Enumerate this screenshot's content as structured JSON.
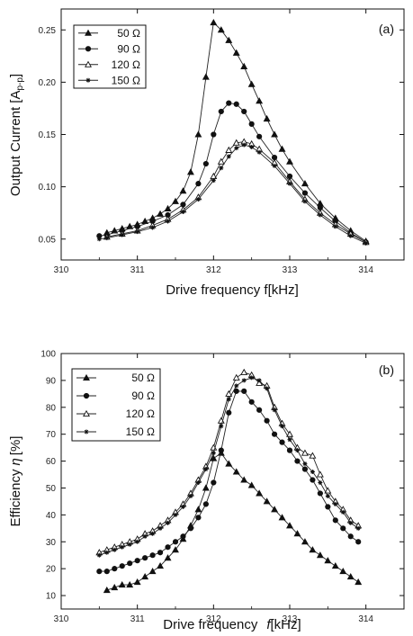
{
  "chart_data": [
    {
      "type": "line",
      "panel_label": "(a)",
      "xlabel": "Drive frequency f[kHz]",
      "ylabel": "Output Current [A",
      "ylabel_sub": "p-p",
      "ylabel_end": "]",
      "xlim": [
        310,
        314.5
      ],
      "ylim": [
        0.03,
        0.27
      ],
      "xticks": [
        "310",
        "311",
        "312",
        "313",
        "314"
      ],
      "yticks": [
        "0.05",
        "0.10",
        "0.15",
        "0.20",
        "0.25"
      ],
      "ytick_values": [
        0.05,
        0.1,
        0.15,
        0.2,
        0.25
      ],
      "xtick_values": [
        310,
        311,
        312,
        313,
        314
      ],
      "legend_position": "top-left",
      "grid": false,
      "series": [
        {
          "name": "50 Ω",
          "marker": "triangle-filled",
          "x": [
            310.6,
            310.7,
            310.8,
            310.9,
            311.0,
            311.1,
            311.2,
            311.3,
            311.4,
            311.5,
            311.6,
            311.7,
            311.8,
            311.9,
            312.0,
            312.1,
            312.2,
            312.3,
            312.4,
            312.5,
            312.6,
            312.7,
            312.8,
            312.9,
            313.0,
            313.2,
            313.4,
            313.6,
            313.8,
            314.0
          ],
          "y": [
            0.056,
            0.058,
            0.06,
            0.062,
            0.064,
            0.067,
            0.07,
            0.074,
            0.079,
            0.086,
            0.096,
            0.114,
            0.15,
            0.205,
            0.257,
            0.25,
            0.24,
            0.228,
            0.215,
            0.198,
            0.182,
            0.165,
            0.15,
            0.136,
            0.124,
            0.103,
            0.084,
            0.07,
            0.058,
            0.048
          ]
        },
        {
          "name": "90 Ω",
          "marker": "circle-filled",
          "x": [
            310.5,
            310.6,
            310.8,
            311.0,
            311.2,
            311.4,
            311.6,
            311.8,
            311.9,
            312.0,
            312.1,
            312.2,
            312.3,
            312.4,
            312.5,
            312.6,
            312.8,
            313.0,
            313.2,
            313.4,
            313.6,
            313.8,
            314.0
          ],
          "y": [
            0.053,
            0.054,
            0.058,
            0.062,
            0.067,
            0.073,
            0.083,
            0.103,
            0.122,
            0.15,
            0.172,
            0.18,
            0.179,
            0.172,
            0.16,
            0.148,
            0.128,
            0.11,
            0.094,
            0.08,
            0.067,
            0.056,
            0.047
          ]
        },
        {
          "name": "120 Ω",
          "marker": "triangle-open",
          "x": [
            310.6,
            310.8,
            311.0,
            311.2,
            311.4,
            311.6,
            311.8,
            312.0,
            312.1,
            312.2,
            312.3,
            312.4,
            312.5,
            312.6,
            312.8,
            313.0,
            313.2,
            313.4,
            313.6,
            313.8,
            314.0
          ],
          "y": [
            0.052,
            0.055,
            0.058,
            0.063,
            0.069,
            0.078,
            0.09,
            0.11,
            0.124,
            0.135,
            0.142,
            0.143,
            0.141,
            0.136,
            0.123,
            0.105,
            0.088,
            0.075,
            0.064,
            0.055,
            0.047
          ]
        },
        {
          "name": "150 Ω",
          "marker": "star-small",
          "x": [
            310.5,
            310.6,
            310.8,
            311.0,
            311.2,
            311.4,
            311.6,
            311.8,
            312.0,
            312.1,
            312.2,
            312.3,
            312.4,
            312.5,
            312.6,
            312.8,
            313.0,
            313.2,
            313.4,
            313.6,
            313.8,
            314.0
          ],
          "y": [
            0.05,
            0.051,
            0.054,
            0.057,
            0.061,
            0.067,
            0.076,
            0.088,
            0.106,
            0.118,
            0.129,
            0.137,
            0.14,
            0.138,
            0.133,
            0.12,
            0.103,
            0.086,
            0.073,
            0.062,
            0.053,
            0.046
          ]
        }
      ]
    },
    {
      "type": "line",
      "panel_label": "(b)",
      "xlabel": "Drive frequency",
      "xlabel_f": "f",
      "xlabel_unit": "[kHz]",
      "ylabel": "Efficiency",
      "ylabel_sym": "η",
      "ylabel_unit": "[%]",
      "xlim": [
        310,
        314.5
      ],
      "ylim": [
        5,
        100
      ],
      "xticks": [
        "310",
        "311",
        "312",
        "313",
        "314"
      ],
      "yticks": [
        "10",
        "20",
        "30",
        "40",
        "50",
        "60",
        "70",
        "80",
        "90",
        "100"
      ],
      "ytick_values": [
        10,
        20,
        30,
        40,
        50,
        60,
        70,
        80,
        90,
        100
      ],
      "xtick_values": [
        310,
        311,
        312,
        313,
        314
      ],
      "legend_position": "top-left",
      "grid": false,
      "series": [
        {
          "name": "50 Ω",
          "marker": "triangle-filled",
          "x": [
            310.6,
            310.7,
            310.8,
            310.9,
            311.0,
            311.1,
            311.2,
            311.3,
            311.4,
            311.5,
            311.6,
            311.7,
            311.8,
            311.9,
            312.0,
            312.1,
            312.2,
            312.3,
            312.4,
            312.5,
            312.6,
            312.7,
            312.8,
            312.9,
            313.0,
            313.1,
            313.2,
            313.3,
            313.4,
            313.5,
            313.6,
            313.7,
            313.8,
            313.9
          ],
          "y": [
            12,
            13,
            14,
            14,
            15,
            17,
            19,
            21,
            24,
            27,
            31,
            36,
            42,
            50,
            61,
            63,
            59,
            56,
            53,
            51,
            48,
            45,
            42,
            39,
            36,
            33,
            30,
            27,
            25,
            23,
            21,
            19,
            17,
            15
          ]
        },
        {
          "name": "90 Ω",
          "marker": "circle-filled",
          "x": [
            310.5,
            310.6,
            310.7,
            310.8,
            310.9,
            311.0,
            311.1,
            311.2,
            311.3,
            311.4,
            311.5,
            311.6,
            311.7,
            311.8,
            311.9,
            312.0,
            312.1,
            312.2,
            312.3,
            312.4,
            312.5,
            312.6,
            312.7,
            312.8,
            312.9,
            313.0,
            313.1,
            313.2,
            313.3,
            313.4,
            313.5,
            313.6,
            313.7,
            313.8,
            313.9
          ],
          "y": [
            19,
            19,
            20,
            21,
            22,
            23,
            24,
            25,
            26,
            28,
            30,
            32,
            35,
            39,
            44,
            52,
            64,
            78,
            86,
            86,
            82,
            79,
            75,
            70,
            67,
            64,
            60,
            57,
            53,
            48,
            43,
            38,
            35,
            32,
            30
          ]
        },
        {
          "name": "120 Ω",
          "marker": "triangle-open",
          "x": [
            310.5,
            310.6,
            310.7,
            310.8,
            310.9,
            311.0,
            311.1,
            311.2,
            311.3,
            311.4,
            311.5,
            311.6,
            311.7,
            311.8,
            311.9,
            312.0,
            312.1,
            312.2,
            312.3,
            312.4,
            312.5,
            312.6,
            312.7,
            312.8,
            312.9,
            313.0,
            313.1,
            313.2,
            313.3,
            313.4,
            313.5,
            313.6,
            313.7,
            313.8,
            313.9
          ],
          "y": [
            26,
            27,
            28,
            29,
            30,
            31,
            33,
            34,
            36,
            38,
            41,
            44,
            48,
            53,
            58,
            65,
            75,
            85,
            91,
            93,
            92,
            89,
            88,
            80,
            74,
            70,
            65,
            63,
            62,
            55,
            49,
            45,
            42,
            38,
            36
          ]
        },
        {
          "name": "150 Ω",
          "marker": "star-small",
          "x": [
            310.5,
            310.6,
            310.7,
            310.8,
            310.9,
            311.0,
            311.1,
            311.2,
            311.3,
            311.4,
            311.5,
            311.6,
            311.7,
            311.8,
            311.9,
            312.0,
            312.1,
            312.2,
            312.3,
            312.4,
            312.5,
            312.6,
            312.7,
            312.8,
            312.9,
            313.0,
            313.1,
            313.2,
            313.3,
            313.4,
            313.5,
            313.6,
            313.7,
            313.8,
            313.9
          ],
          "y": [
            25,
            26,
            27,
            28,
            29,
            30,
            32,
            33,
            35,
            37,
            40,
            43,
            47,
            52,
            57,
            63,
            73,
            83,
            88,
            90,
            91,
            90,
            87,
            79,
            73,
            68,
            64,
            59,
            56,
            52,
            47,
            44,
            41,
            37,
            35
          ]
        }
      ]
    }
  ]
}
